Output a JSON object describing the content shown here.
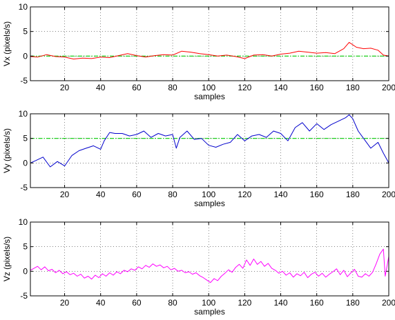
{
  "chart_data": [
    {
      "type": "line",
      "xlabel": "samples",
      "ylabel": "Vx (pixels/s)",
      "xlim": [
        1,
        200
      ],
      "ylim": [
        -5,
        10
      ],
      "xticks": [
        20,
        40,
        60,
        80,
        100,
        120,
        140,
        160,
        180,
        200
      ],
      "yticks": [
        -5,
        0,
        5,
        10
      ],
      "grid": true,
      "reference_line": {
        "y": 0,
        "color": "#00cc00",
        "style": "dash-dot"
      },
      "series": [
        {
          "color": "#ff0000",
          "x": [
            1,
            5,
            10,
            15,
            20,
            25,
            30,
            35,
            40,
            45,
            50,
            55,
            60,
            65,
            70,
            75,
            80,
            85,
            90,
            95,
            100,
            105,
            110,
            115,
            120,
            125,
            130,
            135,
            140,
            145,
            150,
            155,
            160,
            165,
            170,
            175,
            178,
            182,
            186,
            190,
            194,
            197,
            200
          ],
          "y": [
            -0.1,
            -0.2,
            0.3,
            -0.1,
            -0.2,
            -0.6,
            -0.4,
            -0.5,
            -0.2,
            -0.3,
            0.1,
            0.5,
            0.1,
            -0.2,
            0.1,
            0.3,
            0.2,
            1.0,
            0.8,
            0.5,
            0.3,
            0.0,
            0.2,
            -0.1,
            -0.5,
            0.2,
            0.3,
            0.0,
            0.4,
            0.6,
            1.0,
            0.8,
            0.6,
            0.7,
            0.5,
            1.5,
            2.8,
            1.8,
            1.5,
            1.6,
            1.2,
            0.2,
            0.0
          ]
        }
      ]
    },
    {
      "type": "line",
      "xlabel": "samples",
      "ylabel": "Vy (pixels/s)",
      "xlim": [
        1,
        200
      ],
      "ylim": [
        -5,
        10
      ],
      "xticks": [
        20,
        40,
        60,
        80,
        100,
        120,
        140,
        160,
        180,
        200
      ],
      "yticks": [
        -5,
        0,
        5,
        10
      ],
      "grid": true,
      "reference_line": {
        "y": 5,
        "color": "#00cc00",
        "style": "dash-dot"
      },
      "series": [
        {
          "color": "#0000cc",
          "x": [
            1,
            4,
            8,
            12,
            16,
            20,
            24,
            28,
            32,
            36,
            40,
            42,
            45,
            48,
            52,
            56,
            60,
            64,
            68,
            72,
            76,
            80,
            82,
            84,
            88,
            92,
            96,
            100,
            104,
            108,
            112,
            116,
            120,
            124,
            128,
            132,
            136,
            140,
            144,
            148,
            152,
            156,
            160,
            164,
            168,
            172,
            176,
            178,
            180,
            183,
            186,
            190,
            194,
            197,
            200
          ],
          "y": [
            0.0,
            0.5,
            1.2,
            -0.8,
            0.3,
            -0.6,
            1.5,
            2.5,
            3.0,
            3.5,
            2.8,
            4.5,
            6.2,
            6.0,
            6.0,
            5.5,
            5.8,
            6.5,
            5.2,
            6.0,
            5.5,
            5.8,
            3.0,
            5.2,
            6.5,
            4.8,
            5.0,
            3.6,
            3.2,
            3.8,
            4.2,
            5.8,
            4.5,
            5.5,
            5.8,
            5.2,
            6.5,
            6.0,
            4.5,
            7.2,
            8.2,
            6.5,
            8.0,
            6.8,
            7.8,
            8.5,
            9.2,
            9.8,
            9.0,
            6.5,
            5.0,
            3.0,
            4.2,
            2.0,
            0.0
          ]
        }
      ]
    },
    {
      "type": "line",
      "xlabel": "samples",
      "ylabel": "Vz (pixels/s)",
      "xlim": [
        1,
        200
      ],
      "ylim": [
        -5,
        10
      ],
      "xticks": [
        20,
        40,
        60,
        80,
        100,
        120,
        140,
        160,
        180,
        200
      ],
      "yticks": [
        -5,
        0,
        5,
        10
      ],
      "grid": true,
      "series": [
        {
          "color": "#ff00ff",
          "x": [
            1,
            3,
            5,
            7,
            9,
            11,
            13,
            15,
            17,
            19,
            21,
            23,
            25,
            27,
            29,
            31,
            33,
            35,
            37,
            39,
            41,
            43,
            45,
            47,
            49,
            51,
            53,
            55,
            57,
            59,
            61,
            63,
            65,
            67,
            69,
            71,
            73,
            75,
            77,
            79,
            81,
            83,
            85,
            87,
            89,
            91,
            93,
            95,
            97,
            99,
            101,
            103,
            105,
            107,
            109,
            111,
            113,
            115,
            117,
            119,
            121,
            123,
            125,
            127,
            129,
            131,
            133,
            135,
            137,
            139,
            141,
            143,
            145,
            147,
            149,
            151,
            153,
            155,
            157,
            159,
            161,
            163,
            165,
            167,
            169,
            171,
            173,
            175,
            177,
            179,
            181,
            183,
            185,
            187,
            189,
            191,
            193,
            195,
            197,
            198,
            200
          ],
          "y": [
            0.2,
            0.6,
            1.0,
            0.3,
            0.9,
            0.1,
            0.4,
            -0.3,
            0.2,
            -0.5,
            -0.1,
            -0.7,
            -0.4,
            -1.0,
            -0.6,
            -1.4,
            -1.0,
            -1.6,
            -0.8,
            -1.3,
            -0.5,
            -1.0,
            -0.3,
            -0.8,
            -0.1,
            -0.5,
            0.2,
            -0.1,
            0.5,
            0.2,
            0.9,
            0.5,
            1.2,
            0.8,
            1.5,
            1.0,
            1.3,
            0.7,
            1.0,
            0.3,
            0.6,
            0.0,
            0.2,
            -0.3,
            -0.1,
            -0.6,
            -0.3,
            -0.9,
            -1.3,
            -1.8,
            -2.3,
            -1.5,
            -1.9,
            -1.0,
            -0.4,
            0.3,
            -0.2,
            0.8,
            1.4,
            0.6,
            2.3,
            1.2,
            2.5,
            1.4,
            2.0,
            1.0,
            1.6,
            0.6,
            0.2,
            -0.4,
            0.0,
            -0.8,
            -0.3,
            -1.2,
            -0.5,
            -0.9,
            -0.2,
            -1.3,
            -0.6,
            -0.2,
            -1.0,
            -0.4,
            -1.2,
            -0.6,
            -0.1,
            0.5,
            -0.7,
            0.2,
            -1.1,
            -0.3,
            0.4,
            -1.0,
            -1.2,
            -0.5,
            -1.0,
            -0.2,
            1.5,
            3.5,
            4.5,
            -1.0,
            3.0
          ]
        }
      ]
    }
  ]
}
